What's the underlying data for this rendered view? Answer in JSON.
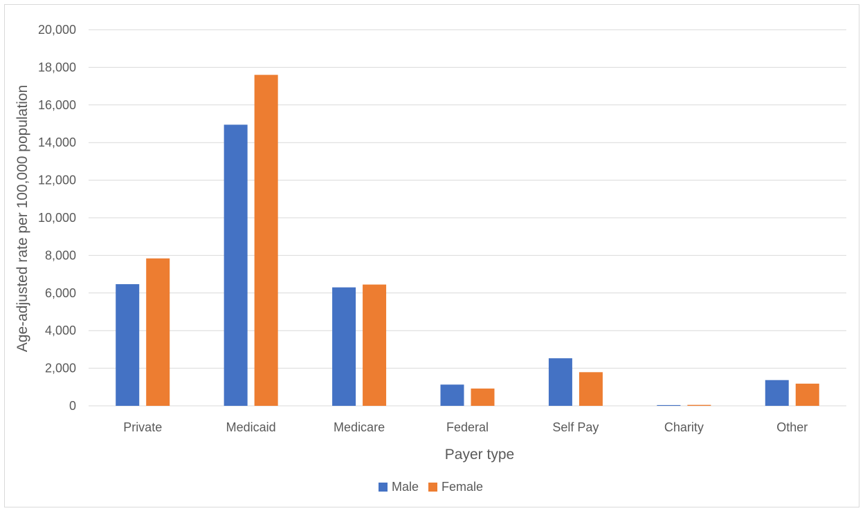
{
  "chart_data": {
    "type": "bar",
    "categories": [
      "Private",
      "Medicaid",
      "Medicare",
      "Federal",
      "Self Pay",
      "Charity",
      "Other"
    ],
    "series": [
      {
        "name": "Male",
        "values": [
          6470,
          14950,
          6300,
          1130,
          2530,
          40,
          1370
        ]
      },
      {
        "name": "Female",
        "values": [
          7840,
          17600,
          6450,
          920,
          1790,
          50,
          1180
        ]
      }
    ],
    "title": "",
    "xlabel": "Payer type",
    "ylabel": "Age-adjusted rate per 100,000 population",
    "ylim": [
      0,
      20000
    ],
    "yticks": [
      0,
      2000,
      4000,
      6000,
      8000,
      10000,
      12000,
      14000,
      16000,
      18000,
      20000
    ],
    "ytick_labels": [
      "0",
      "2,000",
      "4,000",
      "6,000",
      "8,000",
      "10,000",
      "12,000",
      "14,000",
      "16,000",
      "18,000",
      "20,000"
    ],
    "grid": "horizontal",
    "legend_position": "bottom",
    "colors": {
      "Male": "#4472c4",
      "Female": "#ed7d31",
      "gridline": "#d9d9d9",
      "text": "#595959"
    }
  }
}
